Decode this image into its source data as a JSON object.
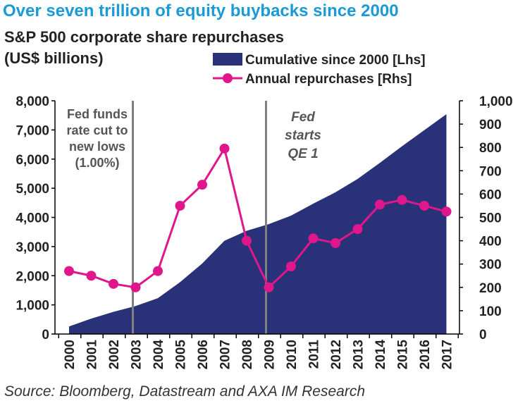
{
  "headline": "Over seven trillion of equity buybacks since 2000",
  "subtitle_line1": "S&P 500 corporate share repurchases",
  "subtitle_line2": "(US$ billions)",
  "source": "Source: Bloomberg, Datastream and AXA IM Research",
  "colors": {
    "headline": "#1a9ad6",
    "area": "#293179",
    "line": "#e0168c",
    "vline": "#808080"
  },
  "chart_data": {
    "type": "area",
    "categories": [
      "2000",
      "2001",
      "2002",
      "2003",
      "2004",
      "2005",
      "2006",
      "2007",
      "2008",
      "2009",
      "2010",
      "2011",
      "2012",
      "2013",
      "2014",
      "2015",
      "2016",
      "2017"
    ],
    "series": [
      {
        "name": "Cumulative since 2000 [Lhs]",
        "type": "area",
        "axis": "left",
        "values": [
          260,
          530,
          760,
          960,
          1230,
          1780,
          2420,
          3200,
          3540,
          3770,
          4060,
          4470,
          4860,
          5320,
          5870,
          6440,
          6990,
          7540
        ]
      },
      {
        "name": "Annual repurchases [Rhs]",
        "type": "line",
        "axis": "right",
        "values": [
          270,
          250,
          215,
          200,
          270,
          550,
          640,
          795,
          400,
          200,
          290,
          410,
          390,
          450,
          555,
          575,
          550,
          525
        ]
      }
    ],
    "y_left": {
      "min": 0,
      "max": 8000,
      "ticks": [
        "0",
        "1,000",
        "2,000",
        "3,000",
        "4,000",
        "5,000",
        "6,000",
        "7,000",
        "8,000"
      ]
    },
    "y_right": {
      "min": 0,
      "max": 1000,
      "ticks": [
        "0",
        "100",
        "200",
        "300",
        "400",
        "500",
        "600",
        "700",
        "800",
        "900",
        "1,000"
      ]
    },
    "legend_position": "top-right",
    "annotations": [
      {
        "year": "2003",
        "lines": [
          "Fed funds",
          "rate cut to",
          "new lows",
          "(1.00%)"
        ]
      },
      {
        "year": "2009",
        "lines": [
          "Fed",
          "starts",
          "QE 1"
        ]
      }
    ]
  }
}
